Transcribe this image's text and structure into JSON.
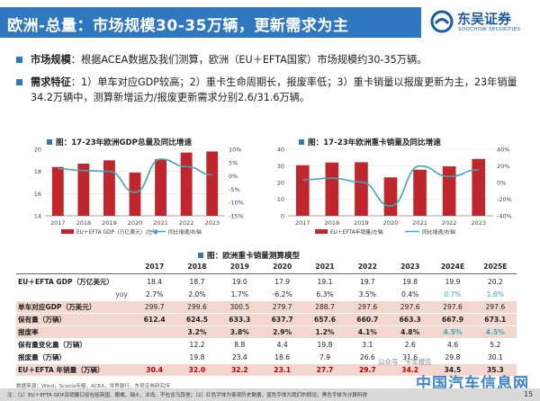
{
  "page": {
    "title": "欧洲-总量：市场规模30-35万辆，更新需求为主",
    "logo_cn": "东吴证券",
    "logo_en": "SOOCHOW SECURITIES",
    "page_number": "15"
  },
  "colors": {
    "title_bar": "#2f78bf",
    "bar": "#c0272d",
    "line": "#3aa9b6",
    "highlight": "#f3d7cf",
    "brand": "#1c5aa0"
  },
  "bullets": [
    {
      "key": "市场规模",
      "text": "：根据ACEA数据及我们测算，欧洲（EU＋EFTA国家）市场规模约30-35万辆。"
    },
    {
      "key": "需求特征",
      "text": "：1）单车对应GDP较高；2）重卡生命周期长，报废率低；3）重卡销量以报废更新为主，23年销量34.2万辆中，测算新增运力/报废更新需求分别2.6/31.6万辆。"
    }
  ],
  "chart_data": [
    {
      "type": "bar",
      "title": "图：17-23年欧洲GDP总量及同比增速",
      "categories": [
        "2017",
        "2018",
        "2019",
        "2020",
        "2021",
        "2022",
        "2023"
      ],
      "series": [
        {
          "name": "EU＋EFTA GDP（万亿美元）",
          "values": [
            18.4,
            18.7,
            19.0,
            17.9,
            19.1,
            19.7,
            19.8
          ],
          "axis": "left",
          "kind": "bar"
        },
        {
          "name": "同比增速（%）",
          "values": [
            2.7,
            2.0,
            1.7,
            -6.2,
            6.3,
            3.5,
            0.4
          ],
          "axis": "right",
          "kind": "line"
        }
      ],
      "left_axis": {
        "ticks": [
          "14",
          "16",
          "18",
          "20"
        ],
        "ylim": [
          14,
          20
        ]
      },
      "right_axis": {
        "ticks": [
          "-15%",
          "-10%",
          "-5%",
          "0%",
          "5%",
          "10%"
        ],
        "ylim": [
          -15,
          10
        ]
      },
      "legend": {
        "bar_label": "EU＋EFTA GDP（万亿美元）",
        "line_label": "同比增速",
        "right_axis_tag": "/右轴"
      },
      "legend_position": "bottom"
    },
    {
      "type": "bar",
      "title": "图：17-23年欧洲重卡销量及同比增速",
      "categories": [
        "2017",
        "2018",
        "2019",
        "2020",
        "2021",
        "2022",
        "2023"
      ],
      "series": [
        {
          "name": "EU＋EFTA年销量（万辆）",
          "values": [
            30.4,
            32.0,
            32.2,
            23.1,
            27.7,
            29.7,
            34.2
          ],
          "axis": "left",
          "kind": "bar"
        },
        {
          "name": "同比增速",
          "values": [
            3.2,
            5.3,
            0.6,
            -28.3,
            19.9,
            7.2,
            15.2
          ],
          "axis": "right",
          "kind": "line"
        }
      ],
      "left_axis": {
        "ticks": [
          "0",
          "10",
          "20",
          "30",
          "40"
        ],
        "ylim": [
          0,
          40
        ]
      },
      "right_axis": {
        "ticks": [
          "-40%",
          "-20%",
          "0%",
          "20%",
          "40%"
        ],
        "ylim": [
          -40,
          40
        ]
      },
      "legend": {
        "bar_label": "EU＋EFTA年销量",
        "line_label": "同比增速",
        "right_axis_tag": "/右轴"
      },
      "legend_position": "bottom"
    }
  ],
  "table": {
    "title": "图：欧洲重卡销量测算模型",
    "headers": [
      "2017",
      "2018",
      "2019",
      "2020",
      "2021",
      "2022",
      "2023",
      "2024E",
      "2025E"
    ],
    "rows": [
      {
        "label": "EU＋EFTA GDP（万亿美元）",
        "highlight": false,
        "bold": false,
        "values": [
          "18.4",
          "18.7",
          "19.0",
          "17.9",
          "19.1",
          "19.7",
          "19.8",
          "19.9",
          "20.2"
        ],
        "styles": [
          "",
          "",
          "",
          "",
          "",
          "",
          "",
          "",
          ""
        ]
      },
      {
        "label": "yoy",
        "highlight": false,
        "bold": false,
        "sub": true,
        "values": [
          "2.7%",
          "2.0%",
          "1.7%",
          "-6.2%",
          "6.3%",
          "3.5%",
          "0.4%",
          "0.7%",
          "1.6%"
        ],
        "styles": [
          "",
          "",
          "",
          "",
          "",
          "",
          "",
          "teal",
          "teal"
        ]
      },
      {
        "label": "单车对应GDP（万美元）",
        "highlight": true,
        "bold": false,
        "values": [
          "299.7",
          "299.6",
          "300.5",
          "279.7",
          "288.7",
          "297.6",
          "297.6",
          "297.6",
          "297.6"
        ],
        "styles": [
          "",
          "",
          "",
          "",
          "",
          "",
          "",
          "",
          ""
        ]
      },
      {
        "label": "保有量（万辆）",
        "highlight": true,
        "bold": true,
        "values": [
          "612.4",
          "624.5",
          "633.3",
          "637.7",
          "657.6",
          "660.7",
          "663.3",
          "667.9",
          "673.1"
        ],
        "styles": [
          "",
          "",
          "",
          "",
          "",
          "",
          "",
          "",
          ""
        ]
      },
      {
        "label": "报废率",
        "highlight": true,
        "bold": true,
        "values": [
          "",
          "3.2%",
          "3.8%",
          "2.9%",
          "1.2%",
          "4.1%",
          "4.8%",
          "4.5%",
          "4.5%"
        ],
        "styles": [
          "",
          "",
          "",
          "",
          "",
          "",
          "",
          "teal",
          "teal"
        ]
      },
      {
        "label": "保有量变化量（万辆）",
        "highlight": false,
        "bold": false,
        "values": [
          "",
          "12.2",
          "8.8",
          "4.4",
          "19.8",
          "3.1",
          "2.6",
          "4.6",
          "5.2"
        ],
        "styles": [
          "",
          "",
          "",
          "",
          "",
          "",
          "",
          "",
          ""
        ]
      },
      {
        "label": "报废量（万辆）",
        "highlight": false,
        "bold": false,
        "values": [
          "",
          "19.8",
          "23.4",
          "18.6",
          "7.9",
          "26.6",
          "31.6",
          "29.8",
          "30.1"
        ],
        "styles": [
          "",
          "",
          "",
          "",
          "",
          "",
          "",
          "",
          ""
        ]
      },
      {
        "label": "EU＋EFTA 年销量（万辆）",
        "highlight": true,
        "bold": true,
        "values": [
          "30.4",
          "32.0",
          "32.2",
          "23.1",
          "27.7",
          "29.7",
          "34.2",
          "34.5",
          "35.3"
        ],
        "styles": [
          "red",
          "red",
          "red",
          "red",
          "red",
          "red",
          "red",
          "",
          ""
        ]
      }
    ]
  },
  "source_note": "数据来源：Wind，Scania年报，ACEA，世界银行，东吴证券研究所",
  "footer_note": "注：（1）EU＋EFTA GDP及销量口径包括英国、挪威、瑞士、冰岛、不包含马其他；（2）红色字体为客观历史数据，蓝色字体为我们的假设，黑色字体为计算所得",
  "watermark_text": "公众号 · 卡车报告",
  "site_mark": "中国汽车信息网"
}
